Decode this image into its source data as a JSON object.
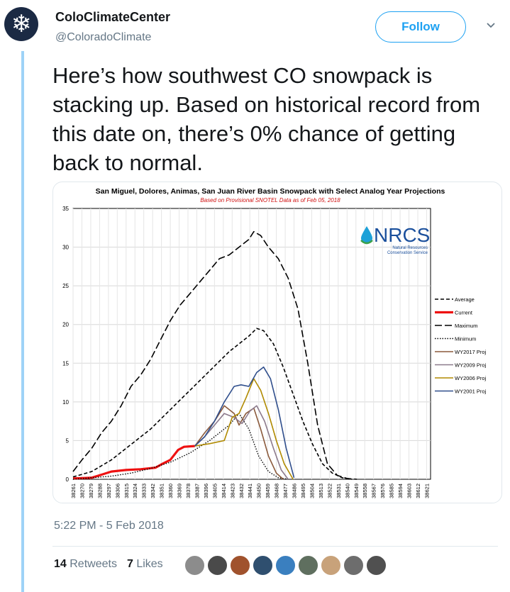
{
  "user": {
    "name": "ColoClimateCenter",
    "handle": "@ColoradoClimate",
    "follow_label": "Follow"
  },
  "tweet": {
    "text": "Here’s how southwest CO snowpack is stacking up. Based on historical record from this date on, there’s 0% chance of getting back to normal.",
    "timestamp": "5:22 PM - 5 Feb 2018",
    "retweets": "14",
    "retweets_label": "Retweets",
    "likes": "7",
    "likes_label": "Likes",
    "liker_avatar_colors": [
      "#8c8c8c",
      "#4a4a4a",
      "#a0522d",
      "#2f4f6f",
      "#3a7fbf",
      "#5f6f5f",
      "#c8a27a",
      "#6d6d6d",
      "#505050"
    ]
  },
  "logo": {
    "text": "NRCS",
    "subtitle1": "Natural Resources",
    "subtitle2": "Conservation Service"
  },
  "chart_data": {
    "type": "line",
    "title": "San Miguel, Dolores, Animas, San Juan River Basin Snowpack with Select Analog Year Projections",
    "subtitle": "Based on Provisional SNOTEL Data as of Feb 05, 2018",
    "xlabel": "",
    "ylabel": "",
    "ylim": [
      0,
      35
    ],
    "xlim": [
      38261,
      38625
    ],
    "yticks": [
      0,
      5,
      10,
      15,
      20,
      25,
      30,
      35
    ],
    "x_tick_labels": [
      "38261",
      "38270",
      "38279",
      "38288",
      "38297",
      "38306",
      "38315",
      "38324",
      "38333",
      "38342",
      "38351",
      "38360",
      "38369",
      "38378",
      "38387",
      "38396",
      "38405",
      "38414",
      "38423",
      "38432",
      "38441",
      "38450",
      "38459",
      "38468",
      "38477",
      "38486",
      "38495",
      "38504",
      "38513",
      "38522",
      "38531",
      "38540",
      "38549",
      "38558",
      "38567",
      "38576",
      "38585",
      "38594",
      "38603",
      "38612",
      "38621"
    ],
    "series": [
      {
        "name": "Average",
        "color": "#000000",
        "dash": "5,3",
        "width": 1.6,
        "x": [
          38261,
          38280,
          38300,
          38320,
          38340,
          38360,
          38380,
          38400,
          38420,
          38440,
          38448,
          38455,
          38465,
          38475,
          38485,
          38495,
          38505,
          38515,
          38525,
          38535,
          38545
        ],
        "y": [
          0.3,
          1.0,
          2.5,
          4.5,
          6.5,
          9.0,
          11.5,
          14.0,
          16.5,
          18.5,
          19.5,
          19.2,
          17.5,
          14.5,
          11.0,
          7.5,
          4.5,
          2.0,
          0.8,
          0.2,
          0.0
        ]
      },
      {
        "name": "Current",
        "color": "#ee1111",
        "dash": "",
        "width": 3.2,
        "x": [
          38261,
          38280,
          38290,
          38300,
          38315,
          38330,
          38345,
          38352,
          38360,
          38368,
          38374,
          38385
        ],
        "y": [
          0.1,
          0.2,
          0.6,
          1.0,
          1.2,
          1.3,
          1.5,
          2.0,
          2.5,
          3.8,
          4.2,
          4.3
        ]
      },
      {
        "name": "Maximum",
        "color": "#000000",
        "dash": "10,4",
        "width": 1.6,
        "x": [
          38261,
          38270,
          38280,
          38290,
          38300,
          38310,
          38320,
          38330,
          38340,
          38350,
          38360,
          38370,
          38380,
          38390,
          38400,
          38410,
          38420,
          38430,
          38440,
          38445,
          38452,
          38460,
          38470,
          38480,
          38490,
          38500,
          38510,
          38520,
          38530,
          38540,
          38550
        ],
        "y": [
          1.0,
          2.5,
          4.0,
          6.0,
          7.5,
          9.5,
          12.0,
          13.5,
          15.5,
          18.0,
          20.5,
          22.5,
          24.0,
          25.5,
          27.0,
          28.5,
          29.0,
          30.0,
          31.0,
          32.0,
          31.5,
          30.0,
          28.5,
          26.0,
          22.0,
          15.0,
          7.0,
          2.0,
          0.5,
          0.1,
          0.0
        ]
      },
      {
        "name": "Minimum",
        "color": "#000000",
        "dash": "1.5,2",
        "width": 1.4,
        "x": [
          38261,
          38280,
          38300,
          38320,
          38340,
          38360,
          38380,
          38400,
          38420,
          38430,
          38440,
          38450,
          38460,
          38470,
          38480
        ],
        "y": [
          0.0,
          0.2,
          0.4,
          0.8,
          1.4,
          2.2,
          3.4,
          5.0,
          7.0,
          8.5,
          6.5,
          3.0,
          1.0,
          0.2,
          0.0
        ]
      },
      {
        "name": "WY2017 Proj",
        "color": "#8b5a3c",
        "dash": "",
        "width": 1.6,
        "x": [
          38385,
          38395,
          38405,
          38415,
          38425,
          38430,
          38437,
          38445,
          38452,
          38460,
          38468,
          38475
        ],
        "y": [
          4.3,
          6.0,
          7.5,
          9.5,
          8.5,
          7.0,
          8.5,
          9.2,
          6.5,
          3.0,
          0.8,
          0.0
        ]
      },
      {
        "name": "WY2009 Proj",
        "color": "#8c7a8c",
        "dash": "",
        "width": 1.6,
        "x": [
          38385,
          38395,
          38405,
          38415,
          38425,
          38433,
          38441,
          38448,
          38456,
          38465,
          38473,
          38480
        ],
        "y": [
          4.3,
          5.5,
          7.0,
          8.5,
          8.0,
          7.2,
          8.8,
          9.5,
          7.5,
          4.0,
          1.2,
          0.0
        ]
      },
      {
        "name": "WY2006 Proj",
        "color": "#b08a00",
        "dash": "",
        "width": 1.6,
        "x": [
          38385,
          38400,
          38415,
          38423,
          38430,
          38437,
          38445,
          38452,
          38460,
          38468,
          38476,
          38485
        ],
        "y": [
          4.3,
          4.6,
          5.0,
          8.0,
          8.5,
          10.5,
          13.0,
          11.5,
          8.5,
          5.0,
          2.0,
          0.0
        ]
      },
      {
        "name": "WY2001 Proj",
        "color": "#2f4e8c",
        "dash": "",
        "width": 1.6,
        "x": [
          38385,
          38395,
          38405,
          38415,
          38425,
          38432,
          38440,
          38448,
          38455,
          38462,
          38470,
          38478,
          38486
        ],
        "y": [
          4.3,
          5.5,
          7.5,
          10.0,
          12.0,
          12.2,
          12.0,
          13.8,
          14.5,
          13.0,
          9.0,
          4.0,
          0.2
        ]
      }
    ]
  }
}
